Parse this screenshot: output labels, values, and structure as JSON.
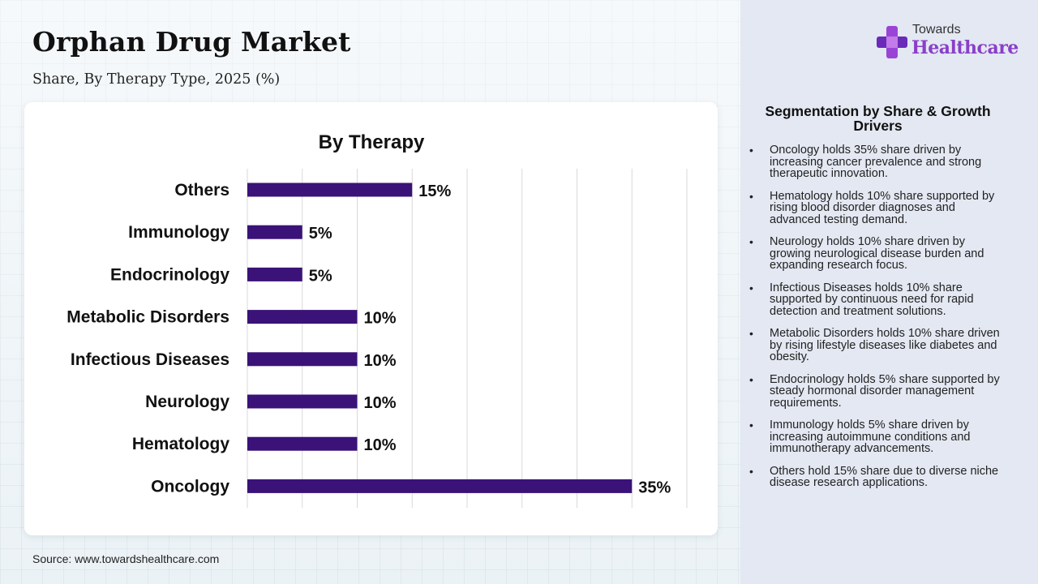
{
  "header": {
    "title": "Orphan Drug Market",
    "subtitle": "Share, By Therapy Type, 2025 (%)"
  },
  "logo": {
    "line1": "Towards",
    "line2": "Healthcare",
    "icon": "medical-cross-icon",
    "color": "#8a3fc8"
  },
  "chart_data": {
    "type": "bar",
    "orientation": "horizontal",
    "title": "By Therapy",
    "categories": [
      "Others",
      "Immunology",
      "Endocrinology",
      "Metabolic Disorders",
      "Infectious Diseases",
      "Neurology",
      "Hematology",
      "Oncology"
    ],
    "values": [
      15,
      5,
      5,
      10,
      10,
      10,
      10,
      35
    ],
    "value_labels": [
      "15%",
      "5%",
      "5%",
      "10%",
      "10%",
      "10%",
      "10%",
      "35%"
    ],
    "xlim": [
      0,
      40
    ],
    "grid": true,
    "bar_color": "#3a1278"
  },
  "side_panel": {
    "title": "Segmentation by Share & Growth Drivers",
    "drivers": [
      "Oncology holds 35% share driven by increasing cancer prevalence and strong therapeutic innovation.",
      "Hematology holds 10% share supported by rising blood disorder diagnoses and advanced testing demand.",
      "Neurology holds 10% share driven by growing neurological disease burden and expanding research focus.",
      "Infectious Diseases holds 10% share supported by continuous need for rapid detection and treatment solutions.",
      "Metabolic Disorders holds 10% share driven by rising lifestyle diseases like diabetes and obesity.",
      "Endocrinology holds 5% share supported by steady hormonal disorder management requirements.",
      "Immunology holds 5% share driven by increasing autoimmune conditions and immunotherapy advancements.",
      "Others hold 15% share due to diverse niche disease research applications."
    ]
  },
  "footer": {
    "source": "Source: www.towardshealthcare.com"
  }
}
